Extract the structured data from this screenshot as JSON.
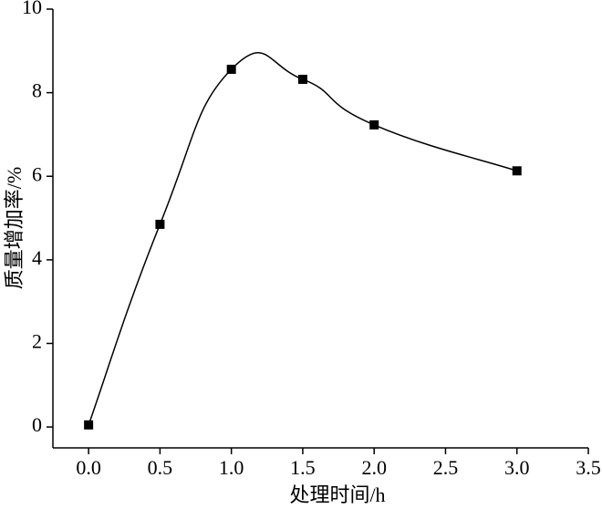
{
  "chart_data": {
    "type": "line",
    "xlabel": "处理时间/h",
    "ylabel": "质量增加率/%",
    "x": [
      0,
      0.5,
      1,
      1.5,
      2,
      3
    ],
    "series": [
      {
        "color": "#000000",
        "values": [
          0.05,
          4.85,
          8.56,
          8.32,
          7.23,
          6.13
        ]
      }
    ],
    "xlim": [
      -0.25,
      3.5
    ],
    "xticks": [
      {
        "value": 0,
        "label": "0.0"
      },
      0.5,
      {
        "value": 1,
        "label": "1.0"
      },
      1.5,
      {
        "value": 2,
        "label": "2.0"
      },
      2.5,
      {
        "value": 3,
        "label": "3.0"
      },
      3.5
    ],
    "ylim": [
      -0.5,
      10
    ],
    "yticks": [
      0,
      2,
      4,
      6,
      8,
      10
    ],
    "markers": "square",
    "smooth": true
  }
}
